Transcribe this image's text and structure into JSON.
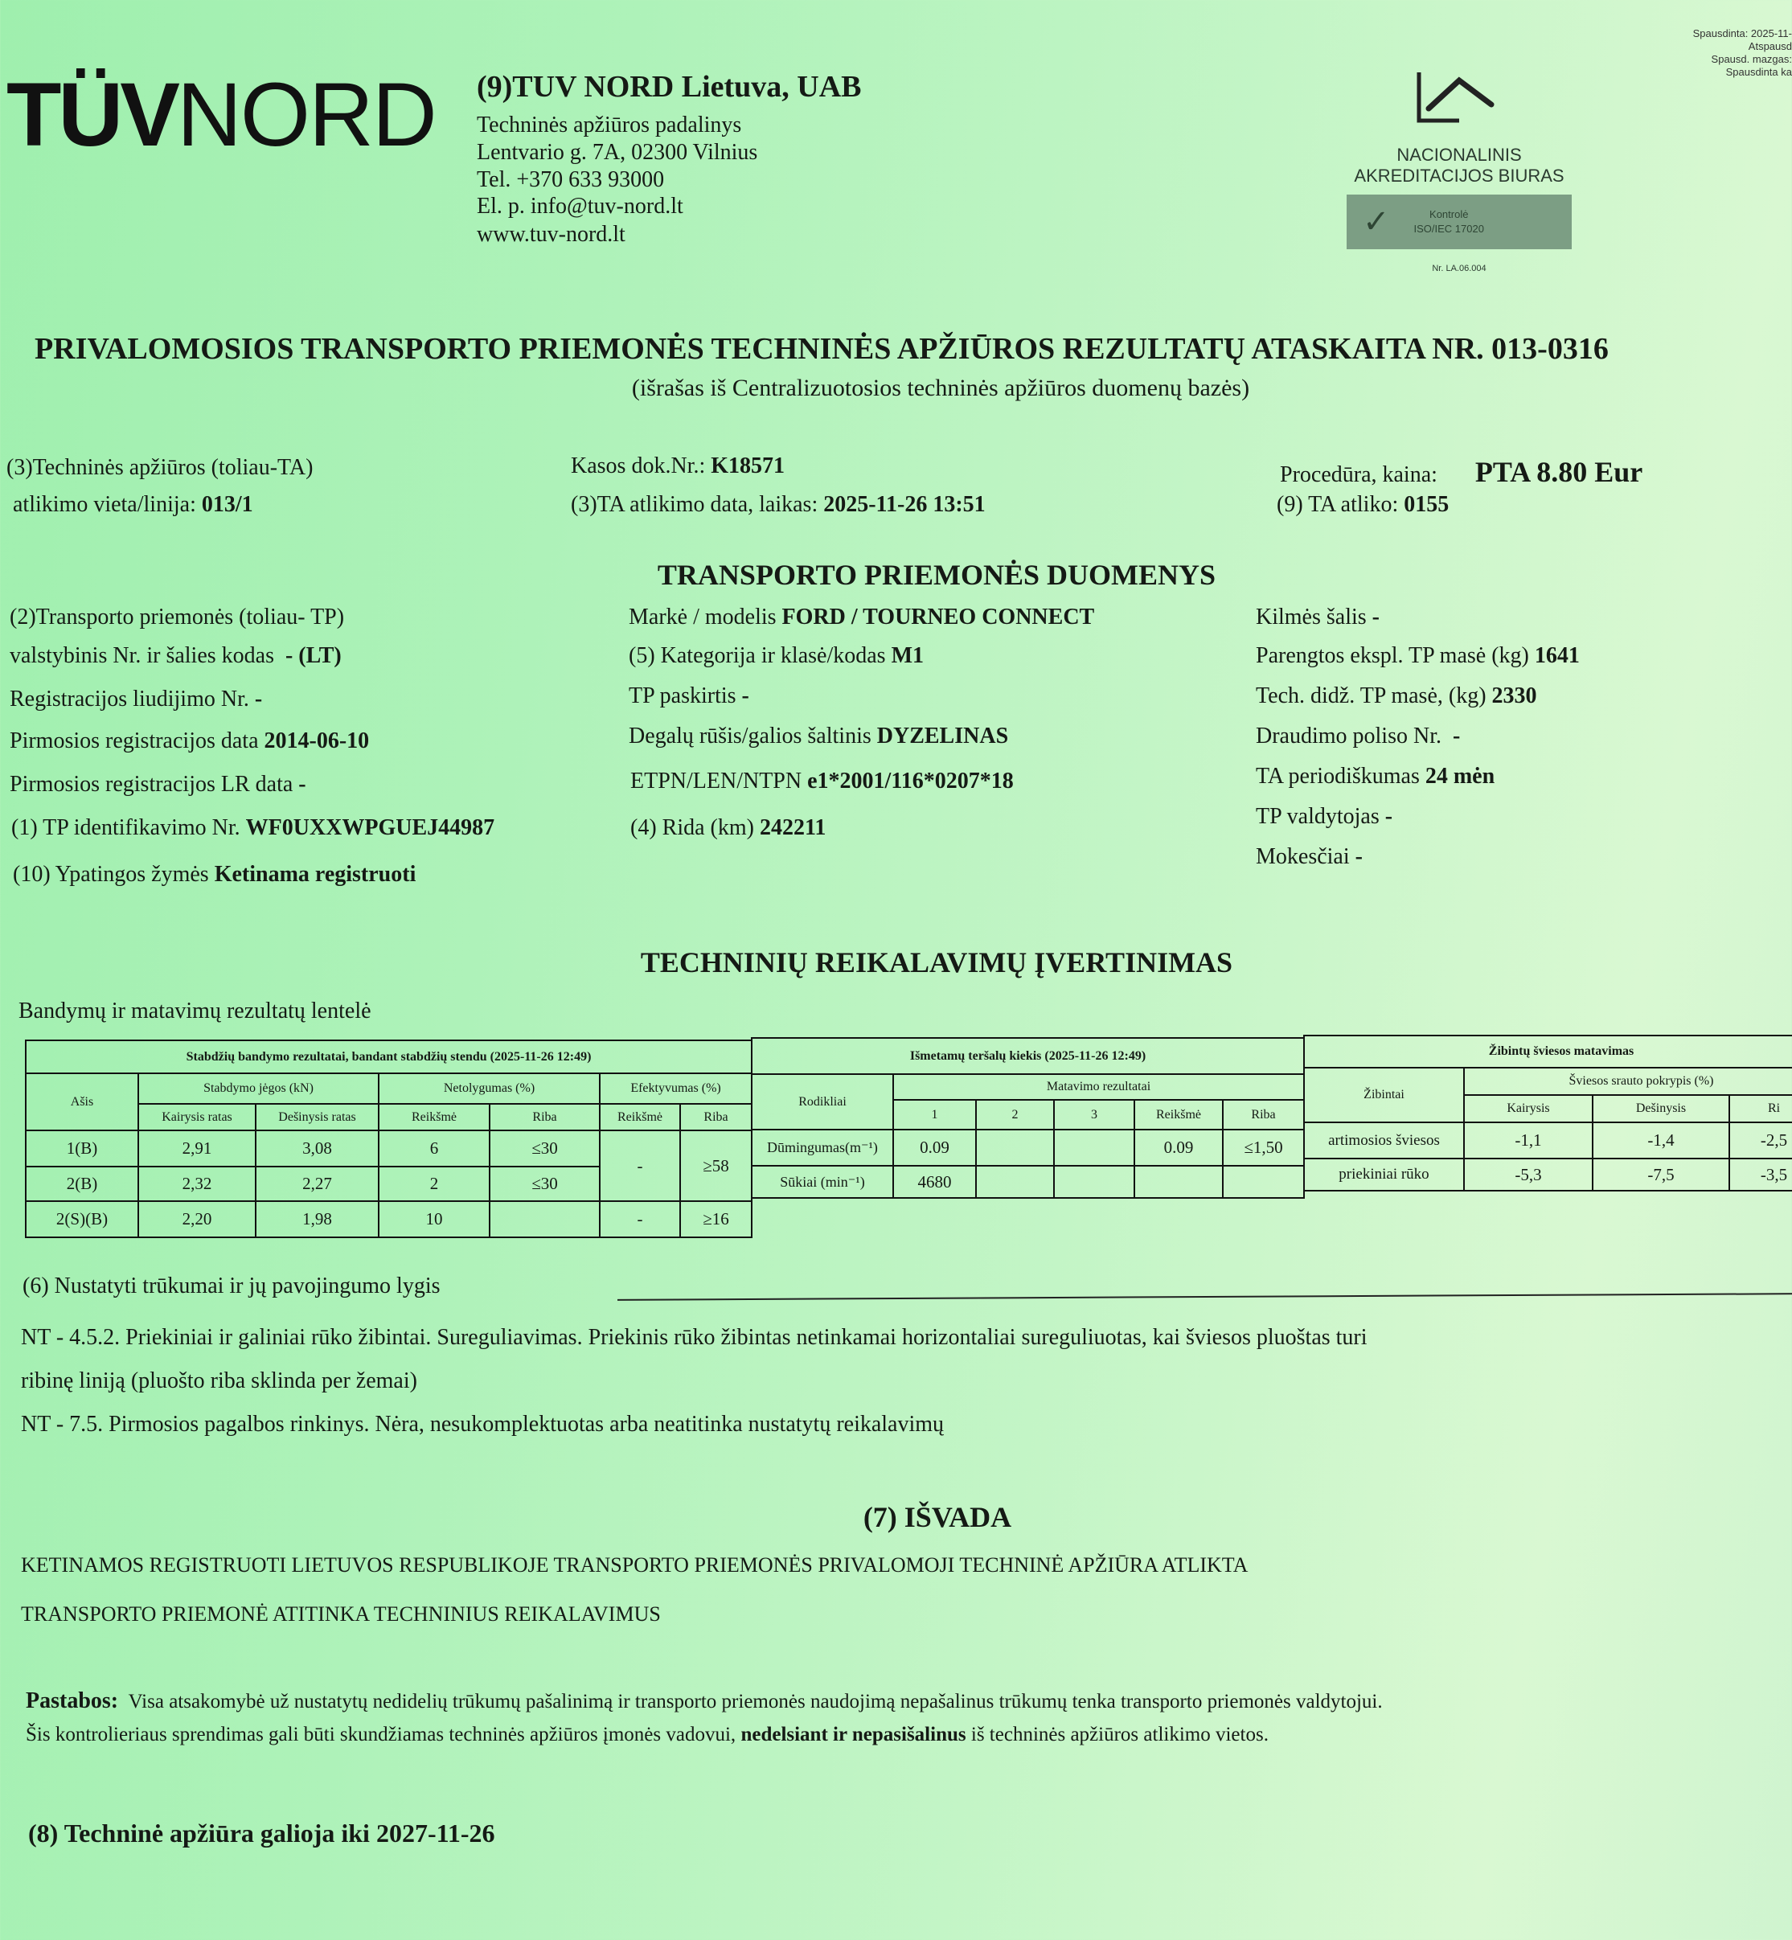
{
  "header": {
    "logo_text": "TÜVNORD",
    "company": "(9)TUV NORD Lietuva, UAB",
    "lines": [
      "Techninės apžiūros padalinys",
      "Lentvario g. 7A, 02300 Vilnius",
      "Tel. +370 633 93000",
      "El. p. info@tuv-nord.lt",
      "www.tuv-nord.lt"
    ],
    "accreditation": {
      "name1": "NACIONALINIS",
      "name2": "AKREDITACIJOS BIURAS",
      "badge1": "Kontrolė",
      "badge2": "ISO/IEC 17020",
      "number": "Nr. LA.06.004"
    },
    "print_info": [
      "Spausdinta: 2025-11-",
      "Atspausd",
      "Spausd. mazgas:",
      "Spausdinta ka"
    ]
  },
  "title": "PRIVALOMOSIOS TRANSPORTO PRIEMONĖS TECHNINĖS APŽIŪROS REZULTATŲ ATASKAITA NR. 013-0316",
  "subtitle": "(išrašas iš Centralizuotosios techninės apžiūros duomenų bazės)",
  "inspection": {
    "place_label1": "(3)Techninės apžiūros (toliau-TA)",
    "place_label2": "atlikimo vieta/linija:",
    "place_value": "013/1",
    "receipt_label": "Kasos dok.Nr.:",
    "receipt_value": "K18571",
    "date_label": "(3)TA atlikimo data, laikas:",
    "date_value": "2025-11-26  13:51",
    "price_label": "Procedūra, kaina:",
    "price_value": "PTA 8.80 Eur",
    "inspector_label": "(9) TA atliko:",
    "inspector_value": "0155"
  },
  "vehicle": {
    "heading": "TRANSPORTO PRIEMONĖS DUOMENYS",
    "col1": [
      {
        "label": "(2)Transporto priemonės (toliau- TP)",
        "value": ""
      },
      {
        "label": "valstybinis Nr. ir šalies kodas",
        "value": "- (LT)"
      },
      {
        "label": "Registracijos liudijimo Nr.",
        "value": "-"
      },
      {
        "label": "Pirmosios registracijos data",
        "value": "2014-06-10"
      },
      {
        "label": "Pirmosios registracijos LR data",
        "value": "-"
      },
      {
        "label": "(1) TP identifikavimo Nr.",
        "value": "WF0UXXWPGUEJ44987"
      },
      {
        "label": "(10) Ypatingos žymės",
        "value": "Ketinama registruoti"
      }
    ],
    "col2": [
      {
        "label": "Markė / modelis",
        "value": "FORD / TOURNEO CONNECT"
      },
      {
        "label": "(5) Kategorija ir klasė/kodas",
        "value": "M1"
      },
      {
        "label": "TP paskirtis",
        "value": "-"
      },
      {
        "label": "Degalų rūšis/galios šaltinis",
        "value": "DYZELINAS"
      },
      {
        "label": "ETPN/LEN/NTPN",
        "value": "e1*2001/116*0207*18"
      },
      {
        "label": "(4) Rida (km)",
        "value": "242211"
      }
    ],
    "col3": [
      {
        "label": "Kilmės šalis",
        "value": "-"
      },
      {
        "label": "Parengtos ekspl. TP masė (kg)",
        "value": "1641"
      },
      {
        "label": "Tech. didž. TP masė, (kg)",
        "value": "2330"
      },
      {
        "label": "Draudimo poliso Nr.",
        "value": "-"
      },
      {
        "label": "TA periodiškumas",
        "value": "24 mėn"
      },
      {
        "label": "TP valdytojas",
        "value": "-"
      },
      {
        "label": "Mokesčiai",
        "value": "-"
      }
    ]
  },
  "assessment": {
    "heading": "TECHNINIŲ REIKALAVIMŲ ĮVERTINIMAS",
    "table_caption": "Bandymų ir matavimų rezultatų lentelė",
    "brakes": {
      "title": "Stabdžių bandymo rezultatai, bandant stabdžių stendu (2025-11-26 12:49)",
      "h_axis": "Ašis",
      "h_force": "Stabdymo jėgos (kN)",
      "h_uneven": "Netolygumas (%)",
      "h_eff": "Efektyvumas (%)",
      "h_left": "Kairysis ratas",
      "h_right": "Dešinysis ratas",
      "h_value": "Reikšmė",
      "h_limit": "Riba",
      "rows": [
        {
          "axis": "1(B)",
          "left": "2,91",
          "right": "3,08",
          "uneven": "6",
          "uneven_limit": "≤30"
        },
        {
          "axis": "2(B)",
          "left": "2,32",
          "right": "2,27",
          "uneven": "2",
          "uneven_limit": "≤30"
        },
        {
          "axis": "2(S)(B)",
          "left": "2,20",
          "right": "1,98",
          "uneven": "10",
          "uneven_limit": ""
        }
      ],
      "eff_service_value": "-",
      "eff_service_limit": "≥58",
      "eff_park_value": "-",
      "eff_park_limit": "≥16"
    },
    "emissions": {
      "title": "Išmetamų teršalų kiekis (2025-11-26 12:49)",
      "h_indicators": "Rodikliai",
      "h_results": "Matavimo rezultatai",
      "h_1": "1",
      "h_2": "2",
      "h_3": "3",
      "h_value": "Reikšmė",
      "h_limit": "Riba",
      "rows": [
        {
          "name": "Dūmingumas(m⁻¹)",
          "m1": "0.09",
          "m2": "",
          "m3": "",
          "value": "0.09",
          "limit": "≤1,50"
        },
        {
          "name": "Sūkiai (min⁻¹)",
          "m1": "4680",
          "m2": "",
          "m3": "",
          "value": "",
          "limit": ""
        }
      ]
    },
    "lights": {
      "title": "Žibintų šviesos matavimas",
      "h_lamps": "Žibintai",
      "h_deviation": "Šviesos srauto pokrypis (%)",
      "h_left": "Kairysis",
      "h_right": "Dešinysis",
      "h_limit": "Ri",
      "rows": [
        {
          "name": "artimosios šviesos",
          "left": "-1,1",
          "right": "-1,4",
          "limit": "-2,5"
        },
        {
          "name": "priekiniai rūko",
          "left": "-5,3",
          "right": "-7,5",
          "limit": "-3,5"
        }
      ]
    }
  },
  "defects": {
    "label": "(6) Nustatyti trūkumai ir jų pavojingumo lygis",
    "lines": [
      "NT - 4.5.2. Priekiniai ir galiniai rūko žibintai. Sureguliavimas. Priekinis rūko žibintas netinkamai horizontaliai sureguliuotas, kai šviesos pluoštas turi",
      "ribinę liniją (pluošto riba sklinda per žemai)",
      "NT - 7.5. Pirmosios pagalbos rinkinys. Nėra, nesukomplektuotas arba neatitinka nustatytų reikalavimų"
    ]
  },
  "conclusion": {
    "heading": "(7) IŠVADA",
    "lines": [
      "KETINAMOS REGISTRUOTI LIETUVOS RESPUBLIKOJE TRANSPORTO PRIEMONĖS PRIVALOMOJI TECHNINĖ APŽIŪRA ATLIKTA",
      "TRANSPORTO PRIEMONĖ ATITINKA TECHNINIUS REIKALAVIMUS"
    ]
  },
  "notes": {
    "label": "Pastabos:",
    "line1": "Visa atsakomybė už nustatytų nedidelių trūkumų pašalinimą ir transporto priemonės naudojimą nepašalinus trūkumų tenka transporto priemonės valdytojui.",
    "line2_a": "Šis kontrolieriaus sprendimas gali būti skundžiamas techninės apžiūros įmonės vadovui,",
    "line2_b": "nedelsiant ir nepasišalinus",
    "line2_c": "iš techninės apžiūros atlikimo vietos."
  },
  "validity": {
    "label": "(8) Techninė apžiūra galioja iki",
    "value": "2027-11-26"
  }
}
